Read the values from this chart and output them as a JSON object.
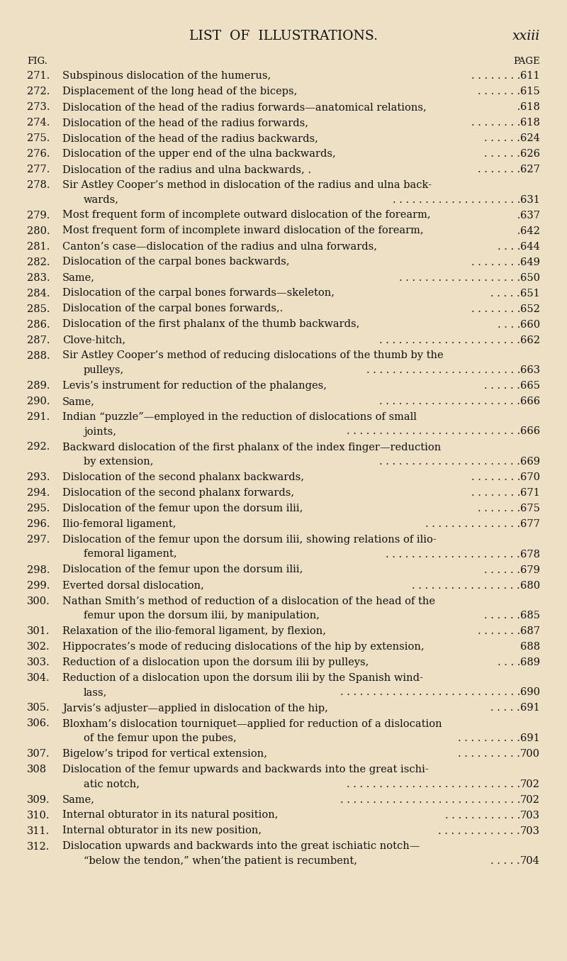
{
  "background_color": "#ede0c4",
  "title": "LIST  OF  ILLUSTRATIONS.",
  "title_page": "xxiii",
  "col_fig_label": "FIG.",
  "col_page_label": "PAGE",
  "entries": [
    {
      "num": "271.",
      "text": "Subspinous dislocation of the humerus,",
      "dots": ". . . . . . . .",
      "page": "611",
      "wrap": null
    },
    {
      "num": "272.",
      "text": "Displacement of the long head of the biceps,",
      "dots": ". . . . . . .",
      "page": "615",
      "wrap": null
    },
    {
      "num": "273.",
      "text": "Dislocation of the head of the radius forwards—anatomical relations,",
      "dots": " .",
      "page": "618",
      "wrap": null
    },
    {
      "num": "274.",
      "text": "Dislocation of the head of the radius forwards,",
      "dots": ". . . . . . . .",
      "page": "618",
      "wrap": null
    },
    {
      "num": "275.",
      "text": "Dislocation of the head of the radius backwards,",
      "dots": ". . . . . .",
      "page": "624",
      "wrap": null
    },
    {
      "num": "276.",
      "text": "Dislocation of the upper end of the ulna backwards,",
      "dots": ". . . . . .",
      "page": "626",
      "wrap": null
    },
    {
      "num": "277.",
      "text": "Dislocation of the radius and ulna backwards, .",
      "dots": ". . . . . . .",
      "page": "627",
      "wrap": null
    },
    {
      "num": "278.",
      "text": "Sir Astley Cooper’s method in dislocation of the radius and ulna back-",
      "dots": null,
      "page": null,
      "wrap": "wards,",
      "wrap_dots": ". . . . . . . . . . . . . . . . . . . .",
      "wrap_page": "631"
    },
    {
      "num": "279.",
      "text": "Most frequent form of incomplete outward dislocation of the forearm,",
      "dots": " .",
      "page": "637",
      "wrap": null
    },
    {
      "num": "280.",
      "text": "Most frequent form of incomplete inward dislocation of the forearm,",
      "dots": " .",
      "page": "642",
      "wrap": null
    },
    {
      "num": "281.",
      "text": "Canton’s case—dislocation of the radius and ulna forwards,",
      "dots": ". . . .",
      "page": "644",
      "wrap": null
    },
    {
      "num": "282.",
      "text": "Dislocation of the carpal bones backwards,",
      "dots": ". . . . . . . .",
      "page": "649",
      "wrap": null
    },
    {
      "num": "283.",
      "text": "Same,",
      "dots": ". . . . . . . . . . . . . . . . . . .",
      "page": "650",
      "wrap": null
    },
    {
      "num": "284.",
      "text": "Dislocation of the carpal bones forwards—skeleton,",
      "dots": ". . . . .",
      "page": "651",
      "wrap": null
    },
    {
      "num": "285.",
      "text": "Dislocation of the carpal bones forwards,.",
      "dots": ". . . . . . . .",
      "page": "652",
      "wrap": null
    },
    {
      "num": "286.",
      "text": "Dislocation of the first phalanx of the thumb backwards,",
      "dots": ". . . .",
      "page": "660",
      "wrap": null
    },
    {
      "num": "287.",
      "text": "Clove-hitch,",
      "dots": ". . . . . . . . . . . . . . . . . . . . . .",
      "page": "662",
      "wrap": null
    },
    {
      "num": "288.",
      "text": "Sir Astley Cooper’s method of reducing dislocations of the thumb by the",
      "dots": null,
      "page": null,
      "wrap": "pulleys,",
      "wrap_dots": ". . . . . . . . . . . . . . . . . . . . . . . .",
      "wrap_page": "663"
    },
    {
      "num": "289.",
      "text": "Levis’s instrument for reduction of the phalanges,",
      "dots": ". . . . . .",
      "page": "665",
      "wrap": null
    },
    {
      "num": "290.",
      "text": "Same,",
      "dots": ". . . . . . . . . . . . . . . . . . . . . .",
      "page": "666",
      "wrap": null
    },
    {
      "num": "291.",
      "text": "Indian “puzzle”—employed in the reduction of dislocations of small",
      "dots": null,
      "page": null,
      "wrap": "joints,",
      "wrap_dots": ". . . . . . . . . . . . . . . . . . . . . . . . . . .",
      "wrap_page": "666"
    },
    {
      "num": "292.",
      "text": "Backward dislocation of the first phalanx of the index finger—reduction",
      "dots": null,
      "page": null,
      "wrap": "by extension,",
      "wrap_dots": ". . . . . . . . . . . . . . . . . . . . . .",
      "wrap_page": "669"
    },
    {
      "num": "293.",
      "text": "Dislocation of the second phalanx backwards,",
      "dots": ". . . . . . . .",
      "page": "670",
      "wrap": null
    },
    {
      "num": "294.",
      "text": "Dislocation of the second phalanx forwards,",
      "dots": ". . . . . . . .",
      "page": "671",
      "wrap": null
    },
    {
      "num": "295.",
      "text": "Dislocation of the femur upon the dorsum ilii,",
      "dots": ". . . . . . .",
      "page": "675",
      "wrap": null
    },
    {
      "num": "296.",
      "text": "Ilio-femoral ligament,",
      "dots": ". . . . . . . . . . . . . . .",
      "page": "677",
      "wrap": null
    },
    {
      "num": "297.",
      "text": "Dislocation of the femur upon the dorsum ilii, showing relations of ilio-",
      "dots": null,
      "page": null,
      "wrap": "femoral ligament,",
      "wrap_dots": ". . . . . . . . . . . . . . . . . . . . .",
      "wrap_page": "678"
    },
    {
      "num": "298.",
      "text": "Dislocation of the femur upon the dorsum ilii,",
      "dots": ". . . . . .",
      "page": "679",
      "wrap": null
    },
    {
      "num": "299.",
      "text": "Everted dorsal dislocation,",
      "dots": ". . . . . . . . . . . . . . . . .",
      "page": "680",
      "wrap": null
    },
    {
      "num": "300.",
      "text": "Nathan Smith’s method of reduction of a dislocation of the head of the",
      "dots": null,
      "page": null,
      "wrap": "femur upon the dorsum ilii, by manipulation,",
      "wrap_dots": ". . . . . .",
      "wrap_page": "685"
    },
    {
      "num": "301.",
      "text": "Relaxation of the ilio-femoral ligament, by flexion,",
      "dots": ". . . . . . .",
      "page": "687",
      "wrap": null
    },
    {
      "num": "302.",
      "text": "Hippocrates’s mode of reducing dislocations of the hip by extension,",
      "dots": "",
      "page": "688",
      "wrap": null
    },
    {
      "num": "303.",
      "text": "Reduction of a dislocation upon the dorsum ilii by pulleys,",
      "dots": ". . . .",
      "page": "689",
      "wrap": null
    },
    {
      "num": "304.",
      "text": "Reduction of a dislocation upon the dorsum ilii by the Spanish wind-",
      "dots": null,
      "page": null,
      "wrap": "lass,",
      "wrap_dots": ". . . . . . . . . . . . . . . . . . . . . . . . . . . .",
      "wrap_page": "690"
    },
    {
      "num": "305.",
      "text": "Jarvis’s adjuster—applied in dislocation of the hip,",
      "dots": ". . . . .",
      "page": "691",
      "wrap": null
    },
    {
      "num": "306.",
      "text": "Bloxham’s dislocation tourniquet—applied for reduction of a dislocation",
      "dots": null,
      "page": null,
      "wrap": "of the femur upon the pubes,",
      "wrap_dots": ". . . . . . . . . .",
      "wrap_page": "691"
    },
    {
      "num": "307.",
      "text": "Bigelow’s tripod for vertical extension,",
      "dots": ". . . . . . . . . .",
      "page": "700",
      "wrap": null
    },
    {
      "num": "308",
      "text": "Dislocation of the femur upwards and backwards into the great ischi-",
      "dots": null,
      "page": null,
      "wrap": "atic notch,",
      "wrap_dots": ". . . . . . . . . . . . . . . . . . . . . . . . . . .",
      "wrap_page": "702"
    },
    {
      "num": "309.",
      "text": "Same,",
      "dots": ". . . . . . . . . . . . . . . . . . . . . . . . . . . .",
      "page": "702",
      "wrap": null
    },
    {
      "num": "310.",
      "text": "Internal obturator in its natural position,",
      "dots": ". . . . . . . . . . . .",
      "page": "703",
      "wrap": null
    },
    {
      "num": "311.",
      "text": "Internal obturator in its new position,",
      "dots": ". . . . . . . . . . . . .",
      "page": "703",
      "wrap": null
    },
    {
      "num": "312.",
      "text": "Dislocation upwards and backwards into the great ischiatic notch—",
      "dots": null,
      "page": null,
      "wrap": "“below the tendon,” when’the patient is recumbent,",
      "wrap_dots": ". . . . .",
      "wrap_page": "704"
    }
  ],
  "text_color": "#111111",
  "font_size": 10.5,
  "title_font_size": 13.5,
  "label_font_size": 9.5
}
